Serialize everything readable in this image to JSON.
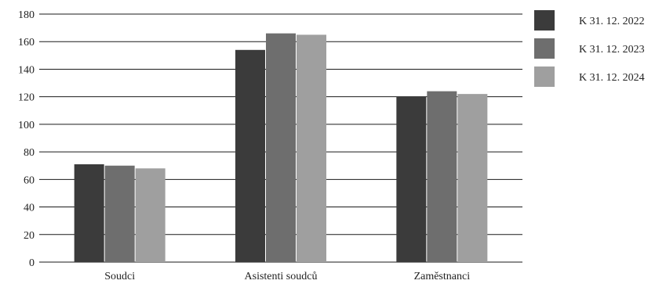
{
  "chart_data": {
    "type": "bar",
    "title": "",
    "xlabel": "",
    "ylabel": "",
    "ylim": [
      0,
      180
    ],
    "yticks": [
      0,
      20,
      40,
      60,
      80,
      100,
      120,
      140,
      160,
      180
    ],
    "grid": true,
    "legend_position": "right",
    "categories": [
      "Soudci",
      "Asistenti soudců",
      "Zaměstnanci"
    ],
    "series": [
      {
        "name": "K 31. 12. 2022",
        "color": "#3b3b3b",
        "values": [
          71,
          154,
          120
        ]
      },
      {
        "name": "K 31. 12. 2023",
        "color": "#6e6e6e",
        "values": [
          70,
          166,
          124
        ]
      },
      {
        "name": "K 31. 12. 2024",
        "color": "#9f9f9f",
        "values": [
          68,
          165,
          122
        ]
      }
    ]
  }
}
